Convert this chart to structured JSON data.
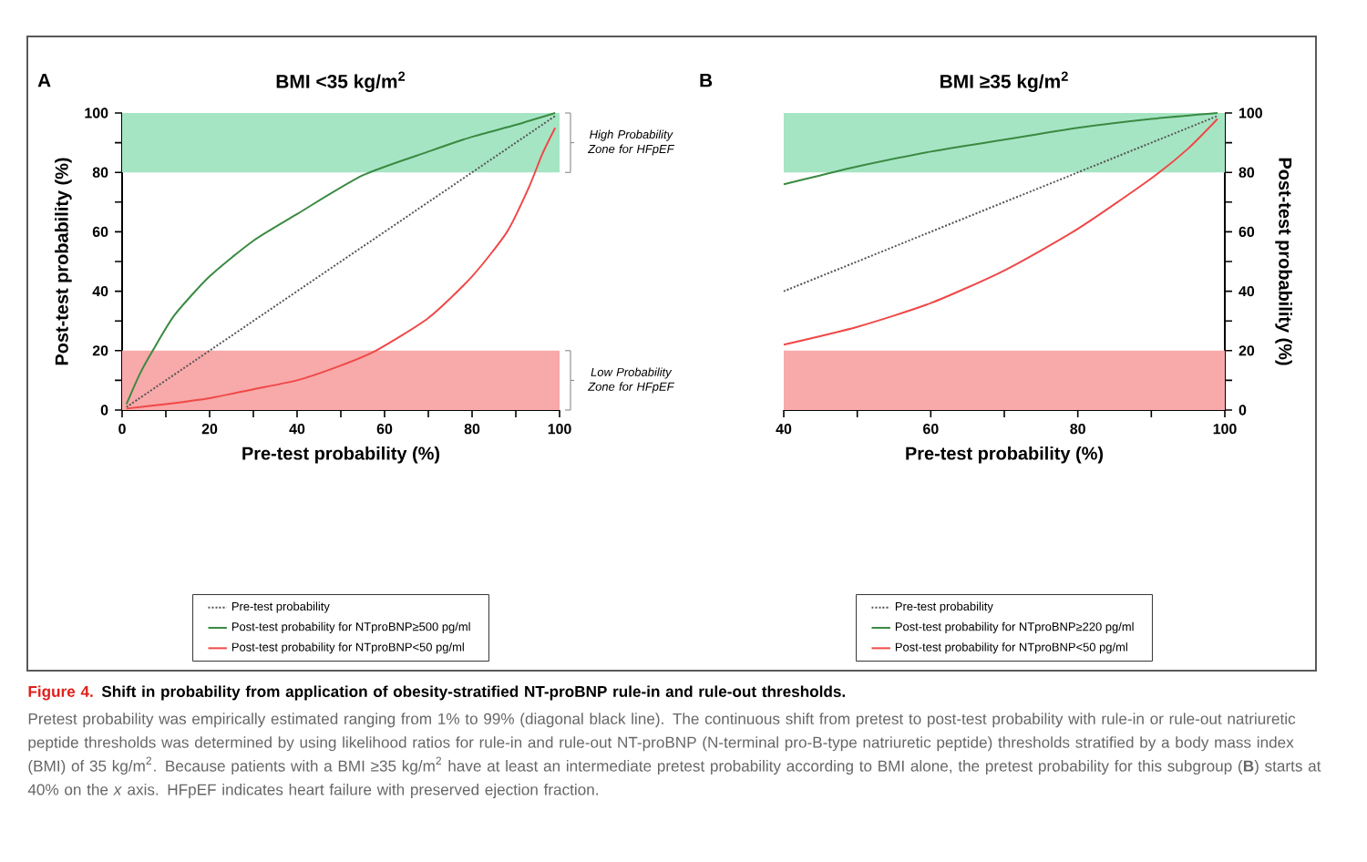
{
  "chart_data": [
    {
      "type": "line",
      "title": "BMI <35 kg/m$^{2}$",
      "annotations": [
        "A"
      ],
      "xlabel": "Pre-test probability (%)",
      "ylabel": "Post-test probability (%)",
      "xlim": [
        0,
        100
      ],
      "ylim": [
        0,
        100
      ],
      "xticks": [
        0,
        {
          "value": 10,
          "label": null
        },
        20,
        {
          "value": 30,
          "label": null
        },
        40,
        {
          "value": 50,
          "label": null
        },
        60,
        {
          "value": 70,
          "label": null
        },
        80,
        {
          "value": 90,
          "label": null
        },
        100
      ],
      "yticks": [
        0,
        {
          "value": 10,
          "label": null
        },
        20,
        {
          "value": 30,
          "label": null
        },
        40,
        {
          "value": 50,
          "label": null
        },
        60,
        {
          "value": 70,
          "label": null
        },
        80,
        {
          "value": 90,
          "label": null
        },
        100
      ],
      "legend": "bottom",
      "bands": [
        {
          "axis": "y",
          "from": 80,
          "to": 100,
          "label": "High Probability Zone for HFpEF",
          "color": "#a6e5c4"
        },
        {
          "axis": "y",
          "from": 0,
          "to": 20,
          "label": "Low Probability Zone for HFpEF",
          "color": "#f8a9a9"
        }
      ],
      "series": [
        {
          "name": "Pre-test probability",
          "color": "#555555",
          "line_style": "dotted",
          "x": [
            1,
            99
          ],
          "values": [
            1,
            99
          ]
        },
        {
          "name": "Post-test probability for NTproBNP≥500 pg/ml",
          "color": "#3a8a42",
          "line_style": "solid",
          "x": [
            1,
            4,
            7,
            12,
            20,
            30,
            40,
            55,
            70,
            80,
            90,
            99
          ],
          "values": [
            2,
            12,
            20,
            32,
            45,
            57,
            66,
            79,
            87,
            92,
            96,
            100
          ]
        },
        {
          "name": "Post-test probability for NTproBNP<50 pg/ml",
          "color": "#f04848",
          "line_style": "solid",
          "x": [
            1,
            10,
            20,
            30,
            40,
            50,
            58,
            70,
            80,
            88,
            93,
            96,
            99
          ],
          "values": [
            0.5,
            2,
            4,
            7,
            10,
            15,
            20,
            31,
            45,
            60,
            75,
            86,
            95
          ]
        }
      ]
    },
    {
      "type": "line",
      "title": "BMI ≥35 kg/m$^{2}$",
      "annotations": [
        "B"
      ],
      "xlabel": "Pre-test probability (%)",
      "y2label": "Post-test probability (%)",
      "xlim": [
        40,
        100
      ],
      "y2lim": [
        0,
        100
      ],
      "xticks": [
        40,
        {
          "value": 50,
          "label": null
        },
        60,
        {
          "value": 70,
          "label": null
        },
        80,
        {
          "value": 90,
          "label": null
        },
        100
      ],
      "y2ticks": [
        0,
        {
          "value": 10,
          "label": null
        },
        20,
        {
          "value": 30,
          "label": null
        },
        40,
        {
          "value": 50,
          "label": null
        },
        60,
        {
          "value": 70,
          "label": null
        },
        80,
        {
          "value": 90,
          "label": null
        },
        100
      ],
      "legend": "bottom",
      "bands": [
        {
          "axis": "y2",
          "from": 80,
          "to": 100,
          "color": "#a6e5c4"
        },
        {
          "axis": "y2",
          "from": 0,
          "to": 20,
          "color": "#f8a9a9"
        }
      ],
      "series": [
        {
          "name": "Pre-test probability",
          "color": "#555555",
          "line_style": "dotted",
          "axis": "y2",
          "x": [
            40,
            99
          ],
          "values": [
            40,
            99
          ]
        },
        {
          "name": "Post-test probability for NTproBNP≥220 pg/ml",
          "color": "#3a8a42",
          "line_style": "solid",
          "axis": "y2",
          "x": [
            40,
            45,
            50,
            60,
            70,
            80,
            90,
            99
          ],
          "values": [
            76,
            79,
            82,
            87,
            91,
            95,
            98,
            100
          ]
        },
        {
          "name": "Post-test probability for NTproBNP<50 pg/ml",
          "color": "#f04848",
          "line_style": "solid",
          "axis": "y2",
          "x": [
            40,
            50,
            60,
            70,
            80,
            90,
            95,
            99
          ],
          "values": [
            22,
            28,
            36,
            47,
            61,
            78,
            88,
            98
          ]
        }
      ]
    },
    {
      "type": "other",
      "annotations": [
        "Figure 4.",
        "Shift in probability from application of obesity-stratified NT-proBNP rule-in and rule-out thresholds.",
        "Pretest probability was empirically estimated ranging from 1% to 99% (diagonal black line). The continuous shift from pretest to post-test probability with rule-in or rule-out natriuretic peptide thresholds was determined by using likelihood ratios for rule-in and rule-out NT-proBNP (N-terminal pro-B-type natriuretic peptide) thresholds stratified by a body mass index (BMI) of 35 kg/m$^{2}$. Because patients with a BMI ≥35 kg/m$^{2}$ have at least an intermediate pretest probability according to BMI alone, the pretest probability for this subgroup (**B**) starts at 40% on the *x* axis. HFpEF indicates heart failure with preserved ejection fraction."
      ]
    }
  ]
}
